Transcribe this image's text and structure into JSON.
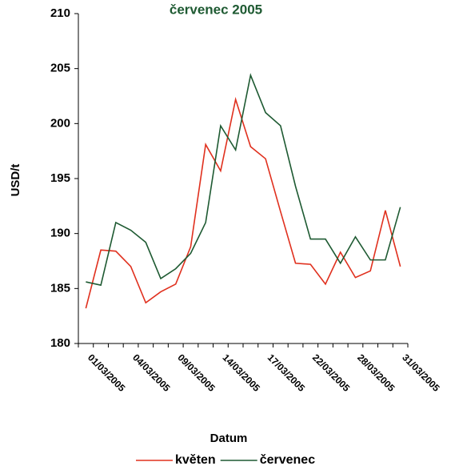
{
  "chart_data": {
    "type": "line",
    "title": "červenec 2005",
    "x_label": "Datum",
    "y_label": "USD/t",
    "categories": [
      "01/03/2005",
      null,
      null,
      "04/03/2005",
      null,
      null,
      "09/03/2005",
      null,
      null,
      "14/03/2005",
      null,
      null,
      "17/03/2005",
      null,
      null,
      "22/03/2005",
      null,
      null,
      "28/03/2005",
      null,
      null,
      "31/03/2005"
    ],
    "series": [
      {
        "name": "květen",
        "color": "#e0301e",
        "values": [
          183.2,
          188.5,
          188.4,
          187.0,
          183.7,
          184.7,
          185.4,
          188.8,
          198.1,
          195.7,
          202.2,
          197.9,
          196.8,
          192.0,
          187.3,
          187.2,
          185.4,
          188.3,
          186.0,
          186.6,
          192.1,
          187.0
        ]
      },
      {
        "name": "červenec",
        "color": "#1e5a32",
        "values": [
          185.6,
          185.3,
          191.0,
          190.3,
          189.2,
          185.9,
          186.8,
          188.2,
          191.0,
          199.8,
          197.6,
          204.4,
          201.0,
          199.8,
          194.3,
          189.5,
          189.5,
          187.3,
          189.7,
          187.6,
          187.6,
          192.4
        ]
      }
    ],
    "ylim": [
      180,
      210
    ],
    "yticks": [
      180,
      185,
      190,
      195,
      200,
      205,
      210
    ],
    "legend": "bottom"
  }
}
